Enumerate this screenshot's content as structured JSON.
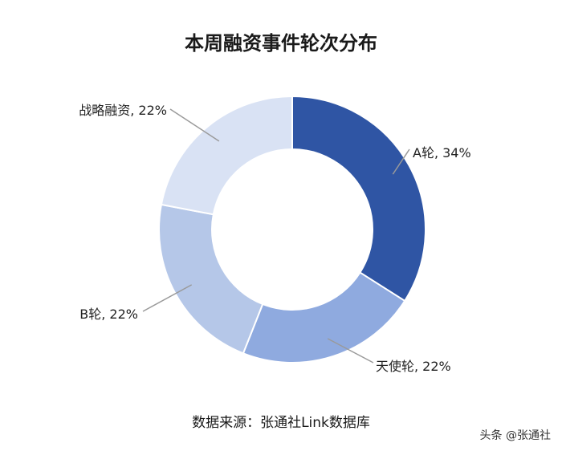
{
  "chart_data": {
    "type": "pie",
    "title": "本周融资事件轮次分布",
    "slices": [
      {
        "name": "A轮",
        "value": 34,
        "color": "#2F55A4",
        "label": "A轮, 34%"
      },
      {
        "name": "天使轮",
        "value": 22,
        "color": "#8FAADF",
        "label": "天使轮, 22%"
      },
      {
        "name": "B轮",
        "value": 22,
        "color": "#B5C7E8",
        "label": "B轮, 22%"
      },
      {
        "name": "战略融资",
        "value": 22,
        "color": "#D9E2F4",
        "label": "战略融资, 22%"
      }
    ]
  },
  "source": "数据来源：张通社Link数据库",
  "watermark": "头条 @张通社"
}
